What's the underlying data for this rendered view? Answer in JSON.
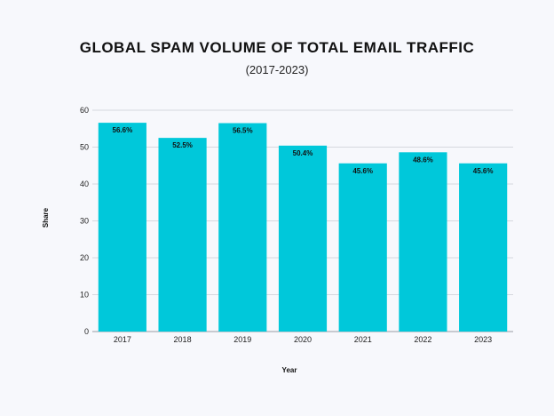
{
  "chart_data": {
    "type": "bar",
    "title": "GLOBAL SPAM VOLUME OF TOTAL EMAIL TRAFFIC",
    "subtitle": "(2017-2023)",
    "xlabel": "Year",
    "ylabel": "Share",
    "categories": [
      "2017",
      "2018",
      "2019",
      "2020",
      "2021",
      "2022",
      "2023"
    ],
    "values": [
      56.6,
      52.5,
      56.5,
      50.4,
      45.6,
      48.6,
      45.6
    ],
    "data_labels": [
      "56.6%",
      "52.5%",
      "56.5%",
      "50.4%",
      "45.6%",
      "48.6%",
      "45.6%"
    ],
    "ylim": [
      0,
      60
    ],
    "yticks": [
      0,
      10,
      20,
      30,
      40,
      50,
      60
    ],
    "grid": true,
    "legend": "none",
    "bar_color": "#00c8da",
    "grid_color": "#d6d8de"
  }
}
